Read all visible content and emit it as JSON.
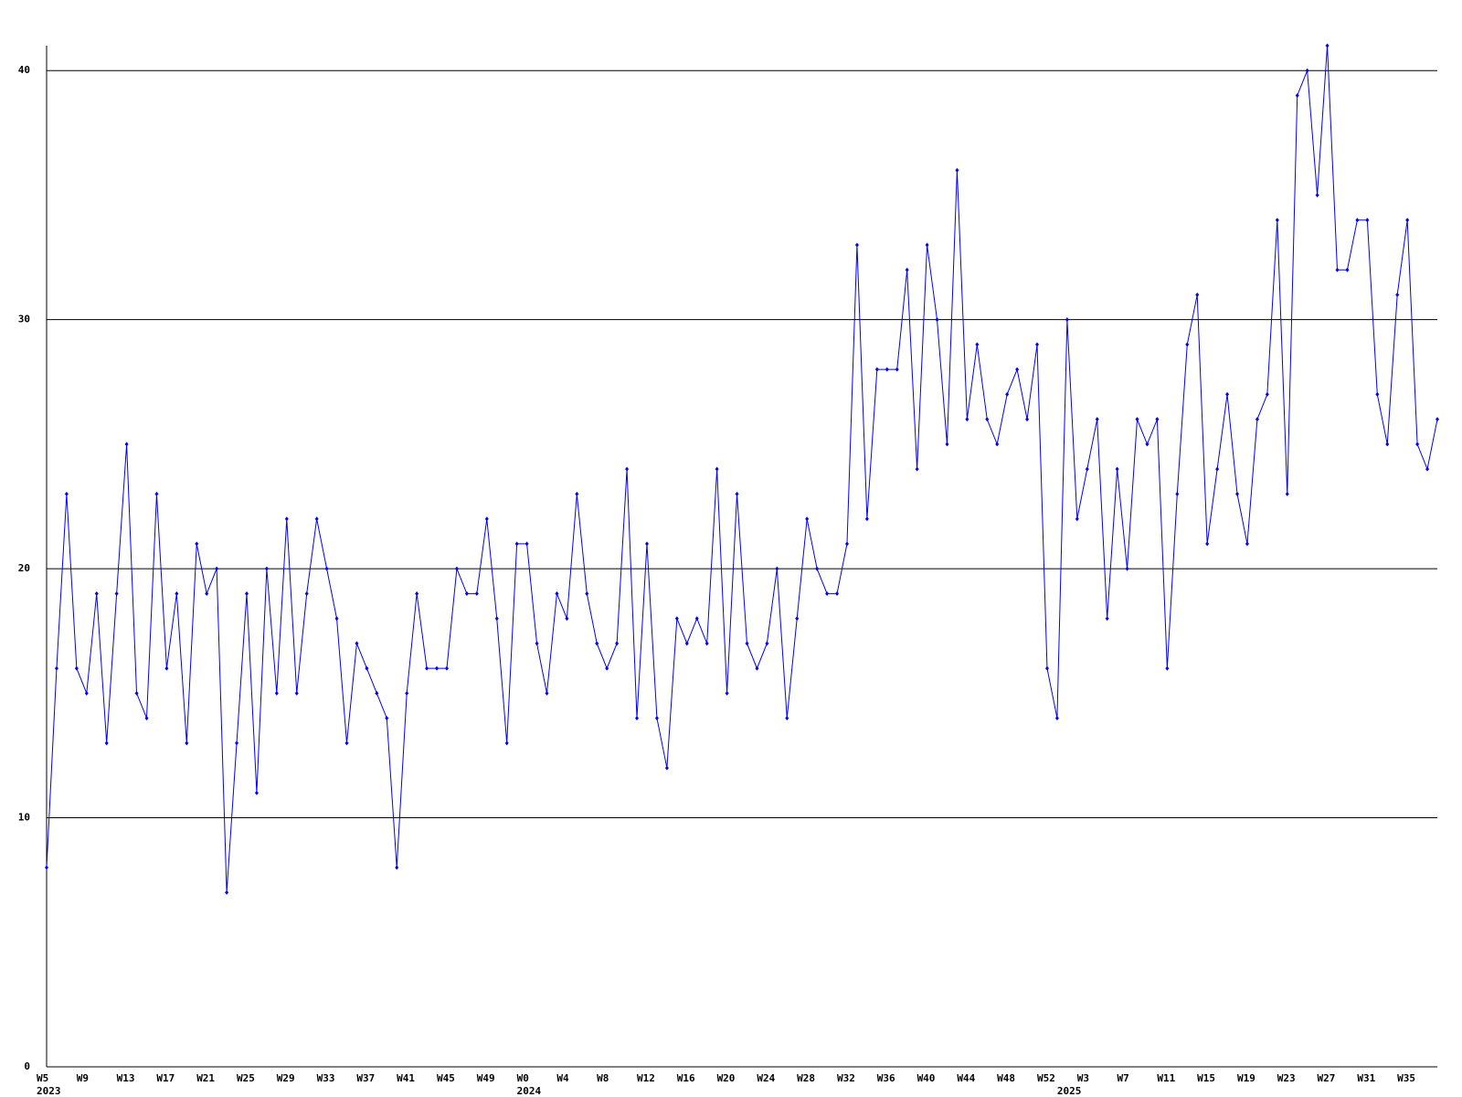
{
  "chart_data": {
    "type": "line",
    "categories": [
      "W5",
      null,
      null,
      null,
      "W9",
      null,
      null,
      null,
      "W13",
      null,
      null,
      null,
      "W17",
      null,
      null,
      null,
      "W21",
      null,
      null,
      null,
      "W25",
      null,
      null,
      null,
      "W29",
      null,
      null,
      null,
      "W33",
      null,
      null,
      null,
      "W37",
      null,
      null,
      null,
      "W41",
      null,
      null,
      null,
      "W45",
      null,
      null,
      null,
      "W49",
      null,
      null,
      null,
      "W0",
      null,
      null,
      null,
      "W4",
      null,
      null,
      null,
      "W8",
      null,
      null,
      null,
      "W12",
      null,
      null,
      null,
      "W16",
      null,
      null,
      null,
      "W20",
      null,
      null,
      null,
      "W24",
      null,
      null,
      null,
      "W28",
      null,
      null,
      null,
      "W32",
      null,
      null,
      null,
      "W36",
      null,
      null,
      null,
      "W40",
      null,
      null,
      null,
      "W44",
      null,
      null,
      null,
      "W48",
      null,
      null,
      null,
      "W52",
      null,
      null,
      null,
      "W3",
      null,
      null,
      null,
      "W7",
      null,
      null,
      null,
      "W11",
      null,
      null,
      null,
      "W15",
      null,
      null,
      null,
      "W19",
      null,
      null,
      null,
      "W23",
      null,
      null,
      null,
      "W27",
      null,
      null,
      null,
      "W31",
      null,
      null,
      null,
      "W35",
      null,
      null,
      null
    ],
    "years": [
      "2023",
      null,
      null,
      null,
      null,
      null,
      null,
      null,
      null,
      null,
      null,
      null,
      null,
      null,
      null,
      null,
      null,
      null,
      null,
      null,
      null,
      null,
      null,
      null,
      null,
      null,
      null,
      null,
      null,
      null,
      null,
      null,
      null,
      null,
      null,
      null,
      null,
      null,
      null,
      null,
      null,
      null,
      null,
      null,
      null,
      null,
      null,
      null,
      "2024",
      null,
      null,
      null,
      null,
      null,
      null,
      null,
      null,
      null,
      null,
      null,
      null,
      null,
      null,
      null,
      null,
      null,
      null,
      null,
      null,
      null,
      null,
      null,
      null,
      null,
      null,
      null,
      null,
      null,
      null,
      null,
      null,
      null,
      null,
      null,
      null,
      null,
      null,
      null,
      null,
      null,
      null,
      null,
      null,
      null,
      null,
      null,
      null,
      null,
      null,
      null,
      null,
      null,
      "2025",
      null,
      null,
      null,
      null,
      null,
      null,
      null,
      null,
      null,
      null,
      null,
      null,
      null,
      null,
      null,
      null,
      null,
      null,
      null,
      null,
      null,
      null,
      null,
      null,
      null,
      null,
      null,
      null,
      null,
      null,
      null
    ],
    "series": [
      {
        "color": "#0000ff",
        "values": [
          8,
          16,
          23,
          16,
          15,
          19,
          13,
          19,
          25,
          15,
          14,
          23,
          16,
          19,
          13,
          21,
          19,
          20,
          7,
          13,
          19,
          11,
          20,
          15,
          22,
          15,
          19,
          22,
          20,
          18,
          13,
          17,
          16,
          15,
          14,
          8,
          15,
          19,
          16,
          16,
          16,
          20,
          19,
          19,
          22,
          18,
          13,
          21,
          21,
          17,
          15,
          19,
          18,
          23,
          19,
          17,
          16,
          17,
          24,
          14,
          21,
          14,
          12,
          18,
          17,
          18,
          17,
          24,
          15,
          23,
          17,
          16,
          17,
          20,
          14,
          18,
          22,
          20,
          19,
          19,
          21,
          33,
          22,
          28,
          28,
          28,
          32,
          24,
          33,
          30,
          25,
          36,
          26,
          29,
          26,
          25,
          27,
          28,
          26,
          29,
          16,
          14,
          30,
          22,
          24,
          26,
          18,
          24,
          20,
          26,
          25,
          26,
          16,
          23,
          29,
          31,
          21,
          24,
          27,
          23,
          21,
          26,
          27,
          34,
          23,
          39,
          40,
          35,
          41,
          32,
          32,
          34,
          34,
          27,
          25,
          31,
          34,
          25,
          24,
          26
        ]
      }
    ],
    "ylim": [
      0,
      41
    ],
    "yticks": [
      0,
      10,
      20,
      30,
      40
    ],
    "grid": true
  }
}
